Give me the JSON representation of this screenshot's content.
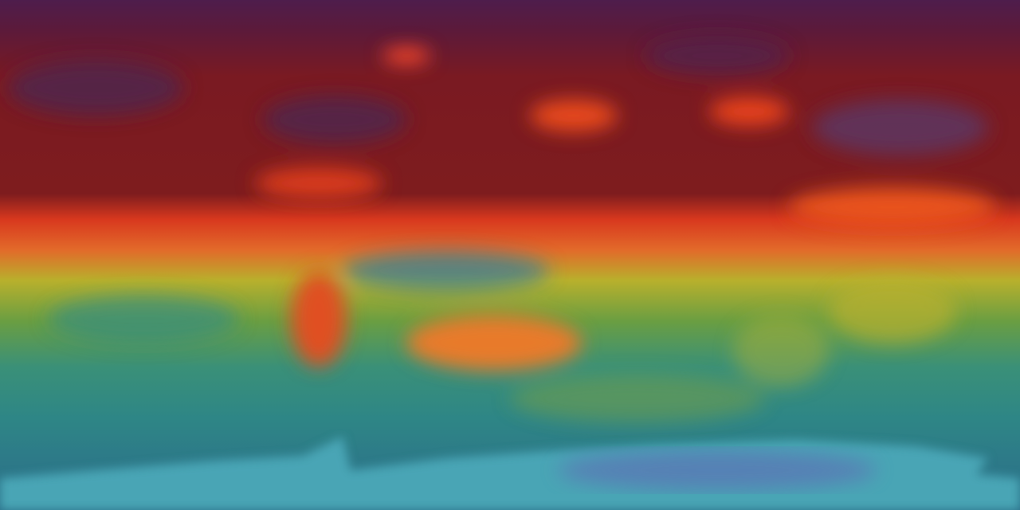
{
  "map": {
    "projection": "equirectangular",
    "colors": {
      "polar_north": "#4e1d4c",
      "northern_hemisphere": "#7a1a22",
      "high_band": "#e8421c",
      "mid_band": "#e07a2a",
      "transition": "#c8b42a",
      "tropics": "#8aa83a",
      "southern_ocean": "#2e8a8a",
      "deep_south": "#2a6f8f",
      "antarctica": "#4aa5b5",
      "antarctica_core": "#5a78b5"
    }
  }
}
